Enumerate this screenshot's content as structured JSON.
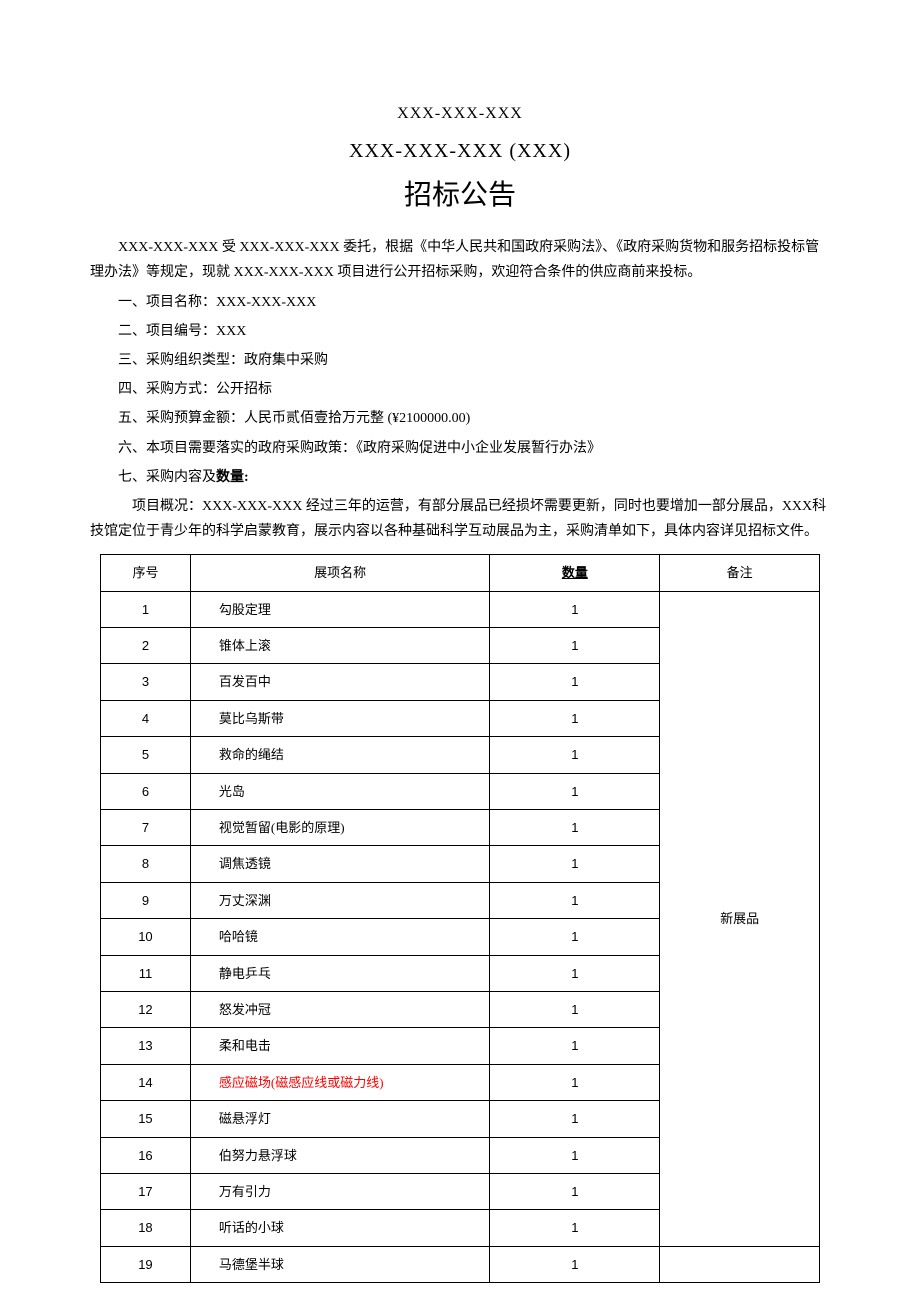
{
  "header": {
    "line1": "XXX-XXX-XXX",
    "line2": "XXX-XXX-XXX (XXX)",
    "title": "招标公告"
  },
  "intro": "XXX-XXX-XXX 受 XXX-XXX-XXX 委托，根据《中华人民共和国政府采购法》、《政府采购货物和服务招标投标管理办法》等规定，现就 XXX-XXX-XXX 项目进行公开招标采购，欢迎符合条件的供应商前来投标。",
  "items": {
    "i1": "一、项目名称：XXX-XXX-XXX",
    "i2": "二、项目编号：XXX",
    "i3": "三、采购组织类型：政府集中采购",
    "i4": "四、采购方式：公开招标",
    "i5": "五、采购预算金额：人民币贰佰壹拾万元整 (¥2100000.00)",
    "i6": "六、本项目需要落实的政府采购政策：《政府采购促进中小企业发展暂行办法》",
    "i7_prefix": "七、采购内容及",
    "i7_bold": "数量:"
  },
  "overview": "项目概况：XXX-XXX-XXX 经过三年的运营，有部分展品已经损坏需要更新，同时也要增加一部分展品，XXX科技馆定位于青少年的科学启蒙教育，展示内容以各种基础科学互动展品为主，采购清单如下，具体内容详见招标文件。",
  "table": {
    "headers": {
      "seq": "序号",
      "name": "展项名称",
      "qty": "数量",
      "remark": "备注"
    },
    "rows": [
      {
        "seq": "1",
        "name": "勾股定理",
        "qty": "1",
        "color": "#000000"
      },
      {
        "seq": "2",
        "name": "锥体上滚",
        "qty": "1",
        "color": "#000000"
      },
      {
        "seq": "3",
        "name": "百发百中",
        "qty": "1",
        "color": "#000000"
      },
      {
        "seq": "4",
        "name": "莫比乌斯带",
        "qty": "1",
        "color": "#000000"
      },
      {
        "seq": "5",
        "name": "救命的绳结",
        "qty": "1",
        "color": "#000000"
      },
      {
        "seq": "6",
        "name": "光岛",
        "qty": "1",
        "color": "#000000"
      },
      {
        "seq": "7",
        "name": "视觉暂留(电影的原理)",
        "qty": "1",
        "color": "#000000"
      },
      {
        "seq": "8",
        "name": "调焦透镜",
        "qty": "1",
        "color": "#000000"
      },
      {
        "seq": "9",
        "name": "万丈深渊",
        "qty": "1",
        "color": "#000000"
      },
      {
        "seq": "10",
        "name": "哈哈镜",
        "qty": "1",
        "color": "#000000"
      },
      {
        "seq": "11",
        "name": "静电乒乓",
        "qty": "1",
        "color": "#000000"
      },
      {
        "seq": "12",
        "name": "怒发冲冠",
        "qty": "1",
        "color": "#000000"
      },
      {
        "seq": "13",
        "name": "柔和电击",
        "qty": "1",
        "color": "#000000"
      },
      {
        "seq": "14",
        "name": "感应磁场(磁感应线或磁力线)",
        "qty": "1",
        "color": "#ff0000"
      },
      {
        "seq": "15",
        "name": "磁悬浮灯",
        "qty": "1",
        "color": "#000000"
      },
      {
        "seq": "16",
        "name": "伯努力悬浮球",
        "qty": "1",
        "color": "#000000"
      },
      {
        "seq": "17",
        "name": "万有引力",
        "qty": "1",
        "color": "#000000"
      },
      {
        "seq": "18",
        "name": "听话的小球",
        "qty": "1",
        "color": "#000000"
      },
      {
        "seq": "19",
        "name": "马德堡半球",
        "qty": "1",
        "color": "#000000"
      }
    ],
    "remark_merged": "新展品",
    "merge_rowspan": 18
  }
}
